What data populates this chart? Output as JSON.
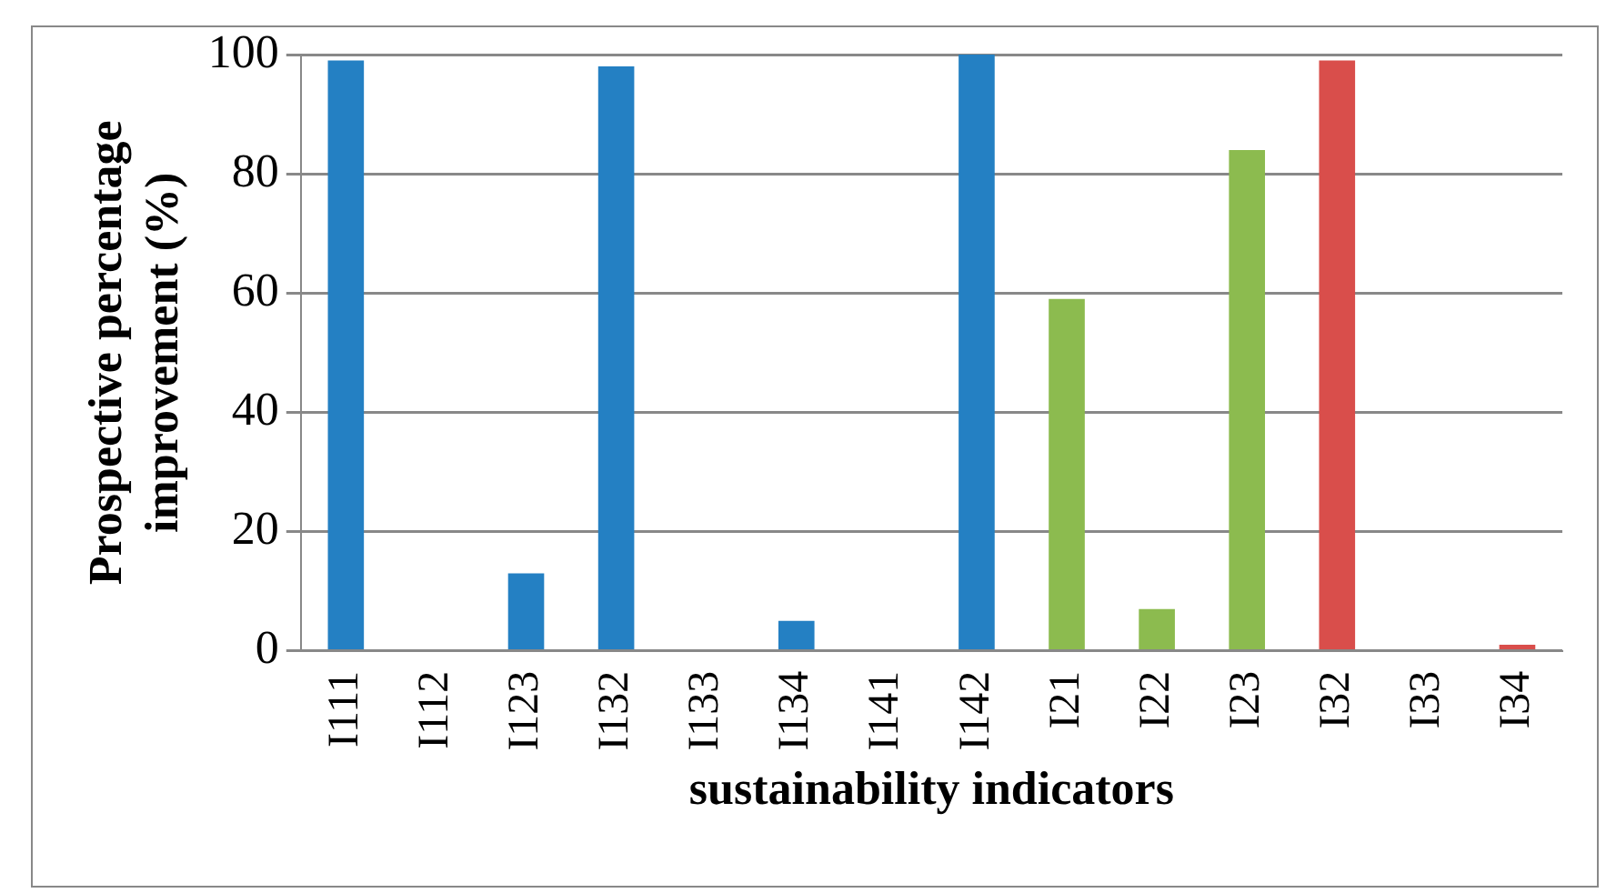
{
  "chart_data": {
    "type": "bar",
    "xlabel": "sustainability indicators",
    "ylabel": "Prospective percentage improvement (%)",
    "categories": [
      "I111",
      "I112",
      "I123",
      "I132",
      "I133",
      "I134",
      "I141",
      "I142",
      "I21",
      "I22",
      "I23",
      "I32",
      "I33",
      "I34"
    ],
    "values": [
      99,
      0,
      13,
      98,
      0,
      5,
      0,
      100,
      59,
      7,
      84,
      99,
      0,
      1
    ],
    "colors": [
      "#2480c3",
      "#2480c3",
      "#2480c3",
      "#2480c3",
      "#2480c3",
      "#2480c3",
      "#2480c3",
      "#2480c3",
      "#8cbb4f",
      "#8cbb4f",
      "#8cbb4f",
      "#d94e4b",
      "#d94e4b",
      "#d94e4b"
    ],
    "ylim": [
      0,
      100
    ],
    "yticks": [
      0,
      20,
      40,
      60,
      80,
      100
    ],
    "grid": "y",
    "legend": false
  }
}
